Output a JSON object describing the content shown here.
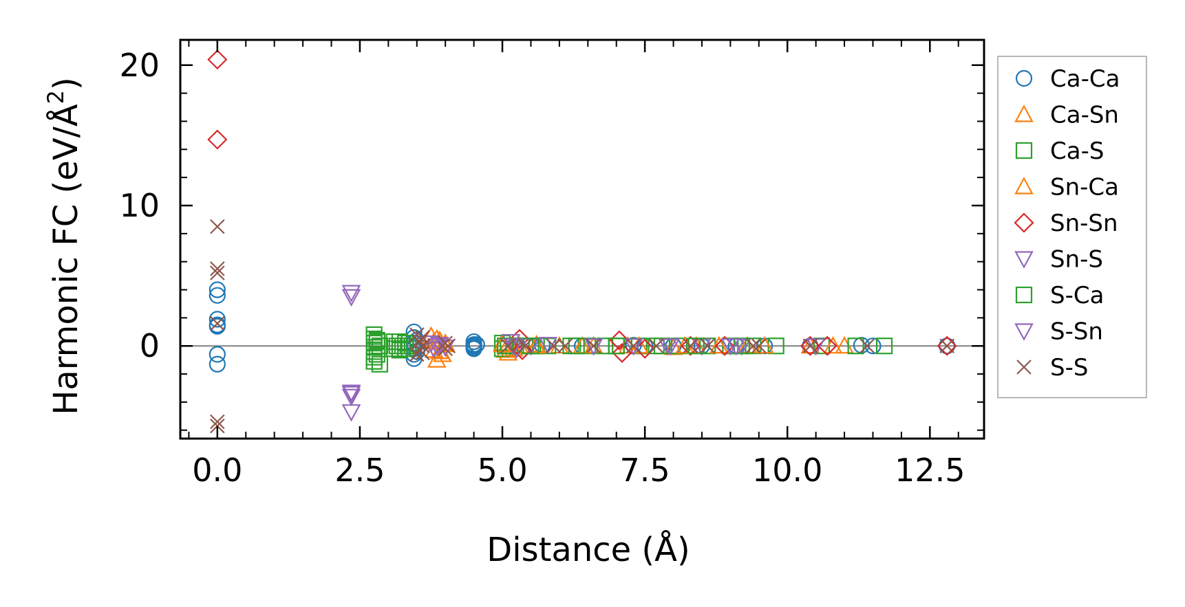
{
  "chart_data": {
    "type": "scatter",
    "title": "",
    "xlabel": "Distance (Å)",
    "ylabel_main": "Harmonic FC (eV/Å",
    "ylabel_sup": "2",
    "ylabel_close": ")",
    "xlim": [
      -0.65,
      13.45
    ],
    "ylim": [
      -6.6,
      21.8
    ],
    "xticks": [
      {
        "value": 0.0,
        "label": "0.0"
      },
      {
        "value": 2.5,
        "label": "2.5"
      },
      {
        "value": 5.0,
        "label": "5.0"
      },
      {
        "value": 7.5,
        "label": "7.5"
      },
      {
        "value": 10.0,
        "label": "10.0"
      },
      {
        "value": 12.5,
        "label": "12.5"
      }
    ],
    "yticks": [
      {
        "value": 0,
        "label": "0"
      },
      {
        "value": 10,
        "label": "10"
      },
      {
        "value": 20,
        "label": "20"
      }
    ],
    "xminor_step": 0.5,
    "yminor_step": 2,
    "zero_line": true,
    "grid": false,
    "legend_position": "outside-right",
    "series": [
      {
        "name": "Ca-Ca",
        "marker": "circle",
        "color": "#1f77b4",
        "x": [
          0.0,
          0.0,
          0.0,
          0.0,
          0.0,
          0.0,
          0.0,
          3.45,
          3.45,
          3.45,
          3.45,
          3.45,
          3.45,
          3.5,
          3.5,
          4.5,
          4.5,
          4.5,
          4.5,
          4.5,
          4.55,
          5.7,
          6.4,
          7.3,
          7.5,
          8.0,
          8.5,
          9.1,
          9.6,
          10.4,
          11.3,
          11.5,
          12.8
        ],
        "y": [
          4.0,
          3.6,
          1.9,
          1.4,
          -0.6,
          -1.3,
          1.5,
          1.0,
          0.6,
          0.2,
          -0.2,
          -0.6,
          -0.9,
          0.4,
          -0.4,
          0.3,
          0.1,
          0.0,
          -0.1,
          -0.2,
          0.1,
          0.05,
          0.0,
          0.05,
          0.0,
          0.0,
          0.0,
          0.0,
          0.0,
          0.0,
          0.05,
          0.0,
          0.0
        ]
      },
      {
        "name": "Ca-Sn",
        "marker": "triangle-up",
        "color": "#ff7f0e",
        "x": [
          3.75,
          3.8,
          3.8,
          3.85,
          3.9,
          3.95,
          4.0,
          5.0,
          5.05,
          5.1,
          5.3,
          5.6,
          6.0,
          6.6,
          7.2,
          8.0,
          8.4,
          8.8,
          9.3,
          10.4,
          11.0
        ],
        "y": [
          0.7,
          0.3,
          -0.3,
          -1.0,
          0.4,
          -0.6,
          0.2,
          0.2,
          -0.3,
          -0.5,
          0.0,
          0.1,
          0.0,
          0.0,
          0.0,
          -0.1,
          0.0,
          0.0,
          0.0,
          0.0,
          0.0
        ]
      },
      {
        "name": "Ca-S",
        "marker": "square",
        "color": "#2ca02c",
        "x": [
          2.75,
          2.75,
          2.75,
          2.75,
          2.75,
          2.75,
          2.75,
          2.8,
          2.8,
          2.85,
          2.85,
          3.1,
          3.1,
          3.15,
          3.2,
          3.2,
          3.25,
          3.3,
          3.3,
          3.35,
          5.0,
          5.0,
          5.1,
          5.2,
          5.4,
          5.6,
          5.8,
          6.2,
          6.5,
          6.8,
          7.0,
          7.4,
          7.7,
          8.1,
          8.6,
          9.0,
          9.4,
          9.8,
          10.6,
          11.2,
          11.7
        ],
        "y": [
          0.8,
          0.5,
          0.2,
          -0.1,
          -0.4,
          -0.8,
          -1.1,
          0.3,
          -0.6,
          0.0,
          -1.3,
          0.3,
          -0.2,
          0.0,
          0.3,
          -0.3,
          0.0,
          0.2,
          -0.2,
          0.0,
          0.2,
          -0.2,
          0.0,
          0.0,
          0.0,
          0.0,
          0.0,
          0.0,
          0.0,
          0.0,
          0.0,
          0.0,
          0.0,
          0.0,
          0.0,
          0.0,
          0.0,
          0.0,
          0.0,
          0.0,
          0.0
        ]
      },
      {
        "name": "Sn-Ca",
        "marker": "triangle-up",
        "color": "#ff7f0e",
        "x": [
          3.85,
          3.9,
          4.0,
          5.0,
          5.2,
          5.6,
          6.4,
          7.4,
          8.2,
          8.8,
          9.6,
          10.8
        ],
        "y": [
          0.5,
          -0.4,
          0.1,
          0.1,
          -0.2,
          0.0,
          0.0,
          0.0,
          0.0,
          0.0,
          0.0,
          0.0
        ]
      },
      {
        "name": "Sn-Sn",
        "marker": "diamond",
        "color": "#d62728",
        "x": [
          0.0,
          0.0,
          5.3,
          5.35,
          7.05,
          7.1,
          7.5,
          8.3,
          8.9,
          10.4,
          10.7,
          12.8
        ],
        "y": [
          20.4,
          14.7,
          0.5,
          -0.3,
          0.4,
          -0.5,
          -0.2,
          0.0,
          0.0,
          0.0,
          0.0,
          0.0
        ]
      },
      {
        "name": "Sn-S",
        "marker": "triangle-down",
        "color": "#9467bd",
        "x": [
          2.35,
          2.35,
          2.35,
          2.35,
          2.35,
          3.75,
          3.8,
          3.9,
          4.0,
          5.15,
          5.2,
          5.25,
          5.5,
          5.8,
          6.6,
          7.3,
          7.9,
          8.5,
          9.2,
          10.5
        ],
        "y": [
          3.8,
          3.5,
          -3.3,
          -3.6,
          -4.7,
          0.2,
          -0.2,
          0.1,
          -0.1,
          0.3,
          0.0,
          -0.2,
          0.0,
          0.1,
          0.0,
          0.0,
          0.0,
          0.0,
          0.0,
          0.0
        ]
      },
      {
        "name": "S-Ca",
        "marker": "square",
        "color": "#2ca02c",
        "x": [
          2.8,
          3.2,
          5.05,
          5.5,
          6.3,
          7.0,
          7.8,
          8.4,
          9.2
        ],
        "y": [
          0.4,
          -0.2,
          0.0,
          0.0,
          0.0,
          0.0,
          0.0,
          0.0,
          0.0
        ]
      },
      {
        "name": "S-Sn",
        "marker": "triangle-down",
        "color": "#9467bd",
        "x": [
          2.35,
          3.85,
          5.2,
          6.6,
          7.95,
          9.0,
          9.1
        ],
        "y": [
          -3.4,
          0.0,
          0.0,
          0.0,
          0.0,
          0.0,
          0.0
        ]
      },
      {
        "name": "S-S",
        "marker": "x",
        "color": "#8c564b",
        "x": [
          0.0,
          0.0,
          0.0,
          0.0,
          0.0,
          0.0,
          3.5,
          3.5,
          3.55,
          3.55,
          3.6,
          3.6,
          3.6,
          4.0,
          4.0,
          4.05,
          5.1,
          5.4,
          5.9,
          6.1,
          6.6,
          7.3,
          7.7,
          8.3,
          8.6,
          9.4,
          9.5,
          10.4,
          11.4,
          12.8
        ],
        "y": [
          8.5,
          5.5,
          5.2,
          1.6,
          -5.4,
          -5.7,
          0.8,
          -0.6,
          0.3,
          -0.3,
          0.0,
          0.6,
          -0.5,
          0.2,
          -0.2,
          0.0,
          0.0,
          0.0,
          0.0,
          0.0,
          0.0,
          0.0,
          0.0,
          0.0,
          0.0,
          0.0,
          0.0,
          0.0,
          0.0,
          0.0
        ]
      }
    ]
  }
}
